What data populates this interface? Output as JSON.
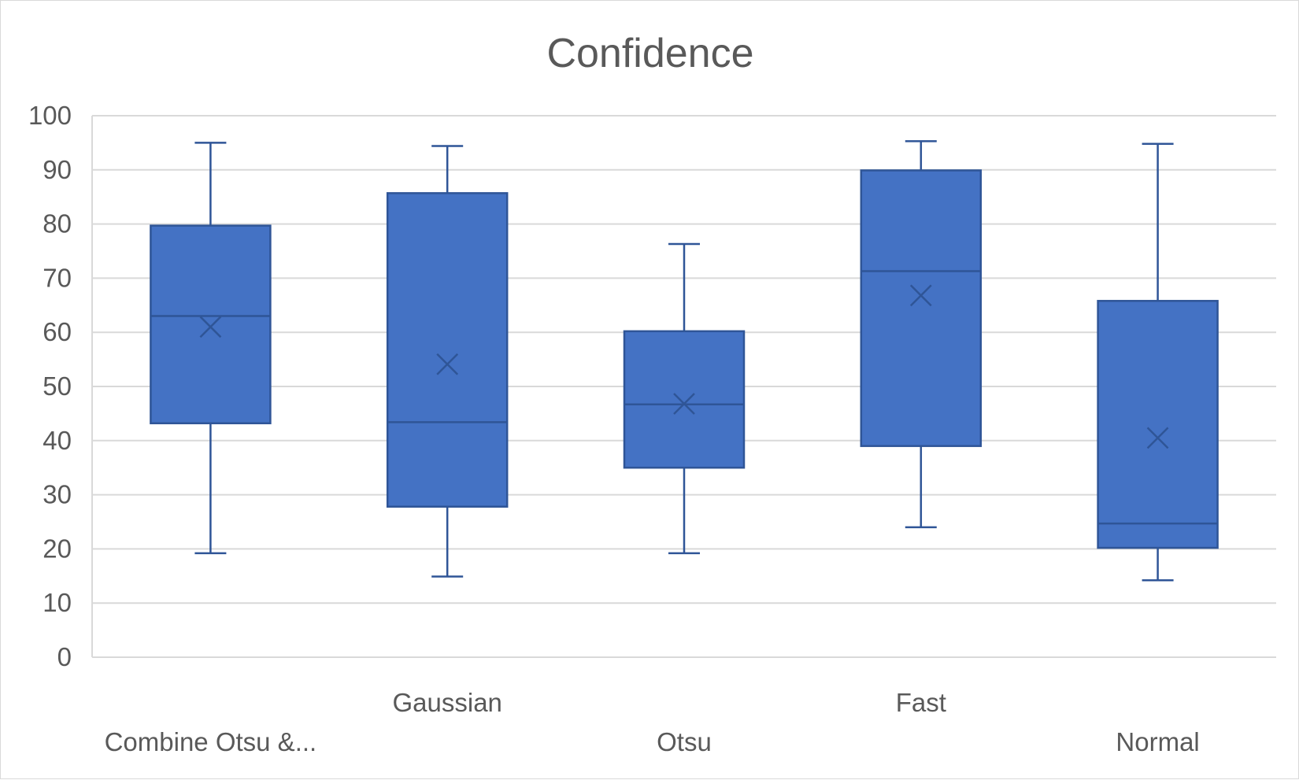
{
  "chart_data": {
    "type": "box",
    "title": "Confidence",
    "xlabel": "",
    "ylabel": "",
    "ylim": [
      0,
      100
    ],
    "yticks": [
      0,
      10,
      20,
      30,
      40,
      50,
      60,
      70,
      80,
      90,
      100
    ],
    "grid": true,
    "legend": "none",
    "colors": {
      "box_fill": "#4472c4",
      "box_stroke": "#2f5597",
      "grid": "#d9d9d9",
      "text": "#595959"
    },
    "categories": [
      "Combine Otsu &...",
      "Gaussian",
      "Otsu",
      "Fast",
      "Normal"
    ],
    "boxes": [
      {
        "category": "Combine Otsu &...",
        "min": 19.2,
        "q1": 43.2,
        "median": 63.0,
        "q3": 79.7,
        "max": 95.0,
        "mean": 61.0
      },
      {
        "category": "Gaussian",
        "min": 14.9,
        "q1": 27.8,
        "median": 43.4,
        "q3": 85.7,
        "max": 94.4,
        "mean": 54.1
      },
      {
        "category": "Otsu",
        "min": 19.2,
        "q1": 35.0,
        "median": 46.7,
        "q3": 60.2,
        "max": 76.3,
        "mean": 46.8
      },
      {
        "category": "Fast",
        "min": 24.0,
        "q1": 39.0,
        "median": 71.3,
        "q3": 89.9,
        "max": 95.3,
        "mean": 66.8
      },
      {
        "category": "Normal",
        "min": 14.2,
        "q1": 20.2,
        "median": 24.7,
        "q3": 65.8,
        "max": 94.8,
        "mean": 40.5
      }
    ]
  }
}
